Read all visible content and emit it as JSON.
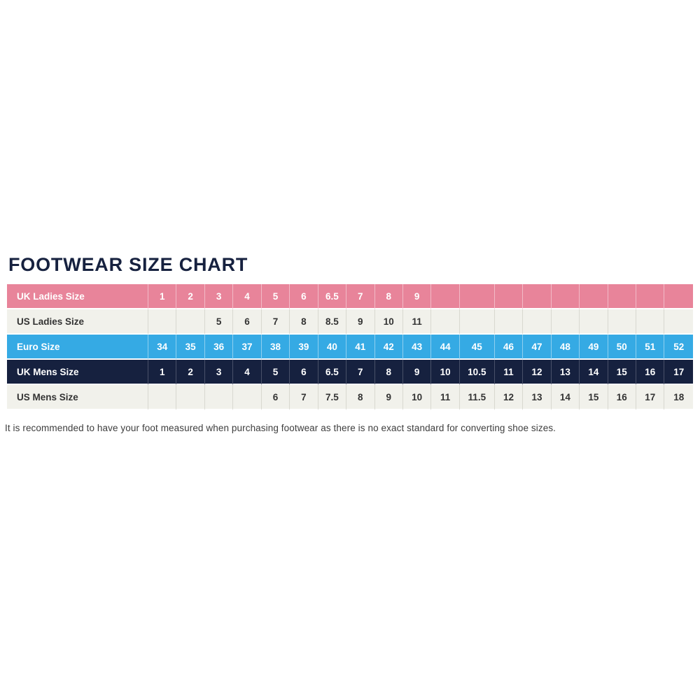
{
  "page": {
    "title": "FOOTWEAR SIZE CHART",
    "footnote": "It is recommended to have your foot measured when purchasing footwear as there is no exact standard for converting shoe sizes."
  },
  "colors": {
    "pink": "#E8849A",
    "blue": "#35AAE4",
    "navy": "#16213F",
    "off_white": "#F1F1EB",
    "dark_text": "#333333",
    "title_text": "#16213F",
    "background": "#FFFFFF"
  },
  "chart_data": {
    "type": "table",
    "title": "FOOTWEAR SIZE CHART",
    "column_count": 19,
    "rows": [
      {
        "label": "UK Ladies Size",
        "style": "pink",
        "values": [
          "1",
          "2",
          "3",
          "4",
          "5",
          "6",
          "6.5",
          "7",
          "8",
          "9",
          "",
          "",
          "",
          "",
          "",
          "",
          "",
          "",
          ""
        ]
      },
      {
        "label": "US Ladies Size",
        "style": "light",
        "values": [
          "",
          "",
          "5",
          "6",
          "7",
          "8",
          "8.5",
          "9",
          "10",
          "11",
          "",
          "",
          "",
          "",
          "",
          "",
          "",
          "",
          ""
        ]
      },
      {
        "label": "Euro Size",
        "style": "blue",
        "values": [
          "34",
          "35",
          "36",
          "37",
          "38",
          "39",
          "40",
          "41",
          "42",
          "43",
          "44",
          "45",
          "46",
          "47",
          "48",
          "49",
          "50",
          "51",
          "52"
        ]
      },
      {
        "label": "UK Mens Size",
        "style": "navy",
        "values": [
          "1",
          "2",
          "3",
          "4",
          "5",
          "6",
          "6.5",
          "7",
          "8",
          "9",
          "10",
          "10.5",
          "11",
          "12",
          "13",
          "14",
          "15",
          "16",
          "17"
        ]
      },
      {
        "label": "US Mens Size",
        "style": "light",
        "values": [
          "",
          "",
          "",
          "",
          "6",
          "7",
          "7.5",
          "8",
          "9",
          "10",
          "11",
          "11.5",
          "12",
          "13",
          "14",
          "15",
          "16",
          "17",
          "18"
        ]
      }
    ]
  }
}
